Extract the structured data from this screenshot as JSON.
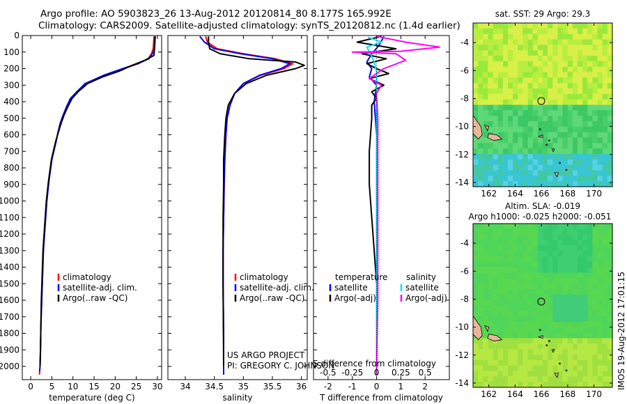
{
  "title": {
    "line1": "Argo profile: AO 5903823_26 13-Aug-2012 20120814_80 8.177S 165.992E",
    "line2": "Climatology: CARS2009. Satellite-adjusted climatology: synTS_20120812.nc (1.4d earlier)"
  },
  "credit": {
    "line1": "US ARGO PROJECT",
    "line2": "PI: GREGORY C. JOHNSON"
  },
  "stamp": "IMOS 19-Aug-2012 17:01:15",
  "colors": {
    "climatology": "#ff0000",
    "satellite": "#0000ff",
    "argo": "#000000",
    "sal_satellite": "#00e5ee",
    "sal_argo": "#ff00ff",
    "land": "#e8b79a"
  },
  "chart_data": [
    {
      "type": "line",
      "id": "temperature-profile",
      "xlabel": "temperature (deg C)",
      "xlim": [
        -2,
        31
      ],
      "xticks": [
        0,
        5,
        10,
        15,
        20,
        25,
        30
      ],
      "ylim": [
        2080,
        0
      ],
      "yticks": [
        0,
        100,
        200,
        300,
        400,
        500,
        600,
        700,
        800,
        900,
        1000,
        1100,
        1200,
        1300,
        1400,
        1500,
        1600,
        1700,
        1800,
        1900,
        2000
      ],
      "legend": [
        "climatology",
        "satellite-adj. clim.",
        "Argo(..raw -QC)"
      ],
      "series": [
        {
          "name": "climatology",
          "x": [
            29.2,
            29.1,
            29.0,
            28.6,
            27.8,
            25.5,
            22.0,
            17.5,
            13.0,
            11.0,
            9.5,
            8.5,
            7.7,
            7.0,
            6.5,
            6.0,
            5.0,
            4.3,
            3.8,
            3.4,
            3.0,
            2.8,
            2.6,
            2.4,
            2.3,
            2.2,
            2.1,
            2.1
          ],
          "y": [
            5,
            40,
            80,
            110,
            140,
            170,
            200,
            240,
            290,
            340,
            380,
            430,
            480,
            530,
            580,
            640,
            750,
            880,
            1000,
            1150,
            1300,
            1450,
            1600,
            1750,
            1900,
            2000,
            2030,
            2050
          ]
        },
        {
          "name": "satellite-adj. clim.",
          "x": [
            29.5,
            29.4,
            29.3,
            28.8,
            28.0,
            25.3,
            21.8,
            17.3,
            12.9,
            10.9,
            9.4,
            8.5,
            7.7,
            7.0,
            6.5,
            6.0,
            5.0,
            4.3,
            3.8,
            3.4,
            3.0,
            2.8,
            2.6,
            2.4,
            2.3,
            2.2,
            2.1
          ],
          "y": [
            5,
            40,
            80,
            110,
            140,
            170,
            200,
            240,
            290,
            340,
            380,
            430,
            480,
            530,
            580,
            640,
            750,
            880,
            1000,
            1150,
            1300,
            1450,
            1600,
            1750,
            1900,
            2000,
            2030
          ]
        },
        {
          "name": "Argo(..raw -QC)",
          "x": [
            29.4,
            29.4,
            29.3,
            29.2,
            27.0,
            24.0,
            21.0,
            17.0,
            13.5,
            11.2,
            9.8,
            8.8,
            7.9,
            7.2,
            6.6,
            5.9,
            4.9,
            4.2,
            3.7,
            3.3,
            2.9,
            2.7,
            2.5,
            2.4,
            2.3,
            2.2
          ],
          "y": [
            5,
            40,
            80,
            120,
            150,
            180,
            215,
            250,
            290,
            340,
            380,
            430,
            480,
            530,
            580,
            640,
            750,
            880,
            1000,
            1150,
            1300,
            1450,
            1600,
            1750,
            1900,
            2000
          ]
        }
      ]
    },
    {
      "type": "line",
      "id": "salinity-profile",
      "xlabel": "salinity",
      "xlim": [
        33.7,
        36.1
      ],
      "xticks": [
        34,
        34.5,
        35,
        35.5,
        36
      ],
      "ylim": [
        2080,
        0
      ],
      "legend": [
        "climatology",
        "satellite-adj. clim.",
        "Argo(..raw -QC)"
      ],
      "series": [
        {
          "name": "climatology",
          "x": [
            34.35,
            34.38,
            34.55,
            35.0,
            35.55,
            35.85,
            35.7,
            35.3,
            35.0,
            34.85,
            34.77,
            34.72,
            34.7,
            34.68,
            34.67,
            34.66,
            34.65,
            34.65,
            34.66,
            34.66
          ],
          "y": [
            5,
            40,
            80,
            110,
            140,
            170,
            200,
            240,
            290,
            350,
            420,
            500,
            600,
            750,
            900,
            1100,
            1300,
            1500,
            1800,
            2050
          ]
        },
        {
          "name": "satellite-adj. clim.",
          "x": [
            34.25,
            34.33,
            34.5,
            34.95,
            35.5,
            35.8,
            35.65,
            35.28,
            35.0,
            34.85,
            34.77,
            34.72,
            34.7,
            34.68,
            34.67,
            34.66,
            34.65,
            34.65,
            34.66,
            34.66
          ],
          "y": [
            5,
            40,
            80,
            110,
            140,
            170,
            200,
            240,
            290,
            350,
            420,
            500,
            600,
            750,
            900,
            1100,
            1300,
            1500,
            1800,
            2050
          ]
        },
        {
          "name": "Argo(..raw -QC)",
          "x": [
            34.4,
            34.4,
            34.42,
            34.6,
            35.1,
            35.9,
            36.05,
            35.9,
            35.4,
            35.05,
            34.85,
            34.74,
            34.7,
            34.68,
            34.66,
            34.66,
            34.65,
            34.65,
            34.66
          ],
          "y": [
            5,
            40,
            80,
            110,
            140,
            160,
            180,
            200,
            240,
            290,
            350,
            420,
            500,
            600,
            750,
            900,
            1100,
            1500,
            2000
          ]
        }
      ]
    },
    {
      "type": "line",
      "id": "difference-profile",
      "xlabel": "T difference from climatology",
      "xlabel_top": "S difference from climatology",
      "xlim": [
        -2.6,
        3.0
      ],
      "xticks": [
        -2,
        -1,
        0,
        1,
        2
      ],
      "xticks_s": [
        -0.5,
        -0.25,
        0,
        0.25,
        0.5
      ],
      "ylim": [
        2080,
        0
      ],
      "legend_headers": [
        "temperature",
        "salinity"
      ],
      "legend": [
        "satellite",
        "Argo(-adj)",
        "satellite",
        "Argo(-adj)"
      ],
      "series": [
        {
          "name": "temperature satellite",
          "x": [
            0.3,
            0.1,
            -0.2,
            -0.4,
            -0.2,
            -0.3,
            0.0,
            -0.1,
            0.0,
            0.0,
            0.0,
            0.0,
            0.0
          ],
          "y": [
            5,
            60,
            110,
            160,
            200,
            250,
            300,
            400,
            600,
            900,
            1300,
            1700,
            2050
          ]
        },
        {
          "name": "temperature Argo(-adj)",
          "x": [
            0.2,
            -0.8,
            0.8,
            -0.6,
            0.4,
            -0.4,
            0.0,
            0.5,
            -0.3,
            0.3,
            -0.2,
            0.0,
            -0.2,
            -0.2,
            -0.3,
            -0.3,
            -0.2,
            -0.1,
            0.0,
            0.0,
            0.0
          ],
          "y": [
            5,
            40,
            80,
            110,
            140,
            170,
            200,
            230,
            260,
            300,
            340,
            380,
            420,
            500,
            700,
            900,
            1100,
            1300,
            1500,
            1800,
            2000
          ]
        },
        {
          "name": "salinity satellite",
          "x": [
            -0.35,
            0.2,
            -0.4,
            -0.25,
            -0.1,
            0.0,
            0.0,
            0.0,
            0.0
          ],
          "y": [
            10,
            40,
            70,
            110,
            160,
            220,
            400,
            1000,
            2050
          ]
        },
        {
          "name": "salinity Argo(-adj)",
          "x": [
            0.0,
            1.2,
            2.6,
            1.0,
            -1.0,
            0.8,
            1.2,
            0.3,
            -0.3,
            0.2,
            0.0,
            0.05,
            0.05,
            0.05,
            0.0
          ],
          "y": [
            5,
            40,
            70,
            95,
            100,
            110,
            150,
            200,
            260,
            300,
            350,
            500,
            1000,
            1600,
            2050
          ]
        }
      ]
    },
    {
      "type": "heatmap",
      "id": "sst-map",
      "title": "sat. SST: 29 Argo: 29.3",
      "xticks": [
        162,
        164,
        166,
        168,
        170
      ],
      "yticks": [
        -4,
        -6,
        -8,
        -10,
        -12,
        -14
      ],
      "xlim": [
        160.8,
        171.4
      ],
      "ylim": [
        -14.3,
        -2.6
      ],
      "argo_position": {
        "lon": 165.992,
        "lat": -8.177
      }
    },
    {
      "type": "heatmap",
      "id": "sla-map",
      "title": "Altim. SLA: -0.019",
      "subtitle": "Argo h1000: -0.025 h2000: -0.051",
      "xticks": [
        162,
        164,
        166,
        168,
        170
      ],
      "yticks": [
        -4,
        -6,
        -8,
        -10,
        -12,
        -14
      ],
      "xlim": [
        160.8,
        171.4
      ],
      "ylim": [
        -14.3,
        -2.6
      ],
      "argo_position": {
        "lon": 165.992,
        "lat": -8.177
      }
    }
  ]
}
